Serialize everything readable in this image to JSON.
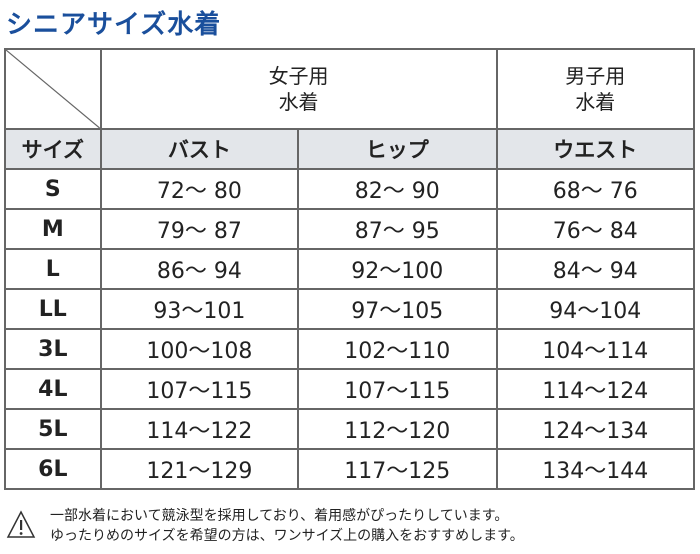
{
  "title": "シニアサイズ水着",
  "header": {
    "women": [
      "女子用",
      "水着"
    ],
    "men": [
      "男子用",
      "水着"
    ],
    "size": "サイズ",
    "bust": "バスト",
    "hip": "ヒップ",
    "waist": "ウエスト"
  },
  "rows": [
    {
      "size": "S",
      "bust": "72～ 80",
      "hip": "82～ 90",
      "waist": "68～ 76"
    },
    {
      "size": "M",
      "bust": "79～ 87",
      "hip": "87～ 95",
      "waist": "76～ 84"
    },
    {
      "size": "L",
      "bust": "86～ 94",
      "hip": "92～100",
      "waist": "84～ 94"
    },
    {
      "size": "LL",
      "bust": "93～101",
      "hip": "97～105",
      "waist": "94～104"
    },
    {
      "size": "3L",
      "bust": "100～108",
      "hip": "102～110",
      "waist": "104～114"
    },
    {
      "size": "4L",
      "bust": "107～115",
      "hip": "107～115",
      "waist": "114～124"
    },
    {
      "size": "5L",
      "bust": "114～122",
      "hip": "112～120",
      "waist": "124～134"
    },
    {
      "size": "6L",
      "bust": "121～129",
      "hip": "117～125",
      "waist": "134～144"
    }
  ],
  "note": {
    "icon": "warning-icon",
    "lines": [
      "一部水着において競泳型を採用しており、着用感がぴったりしています。",
      "ゆったりめのサイズを希望の方は、ワンサイズ上の購入をおすすめします。"
    ]
  }
}
